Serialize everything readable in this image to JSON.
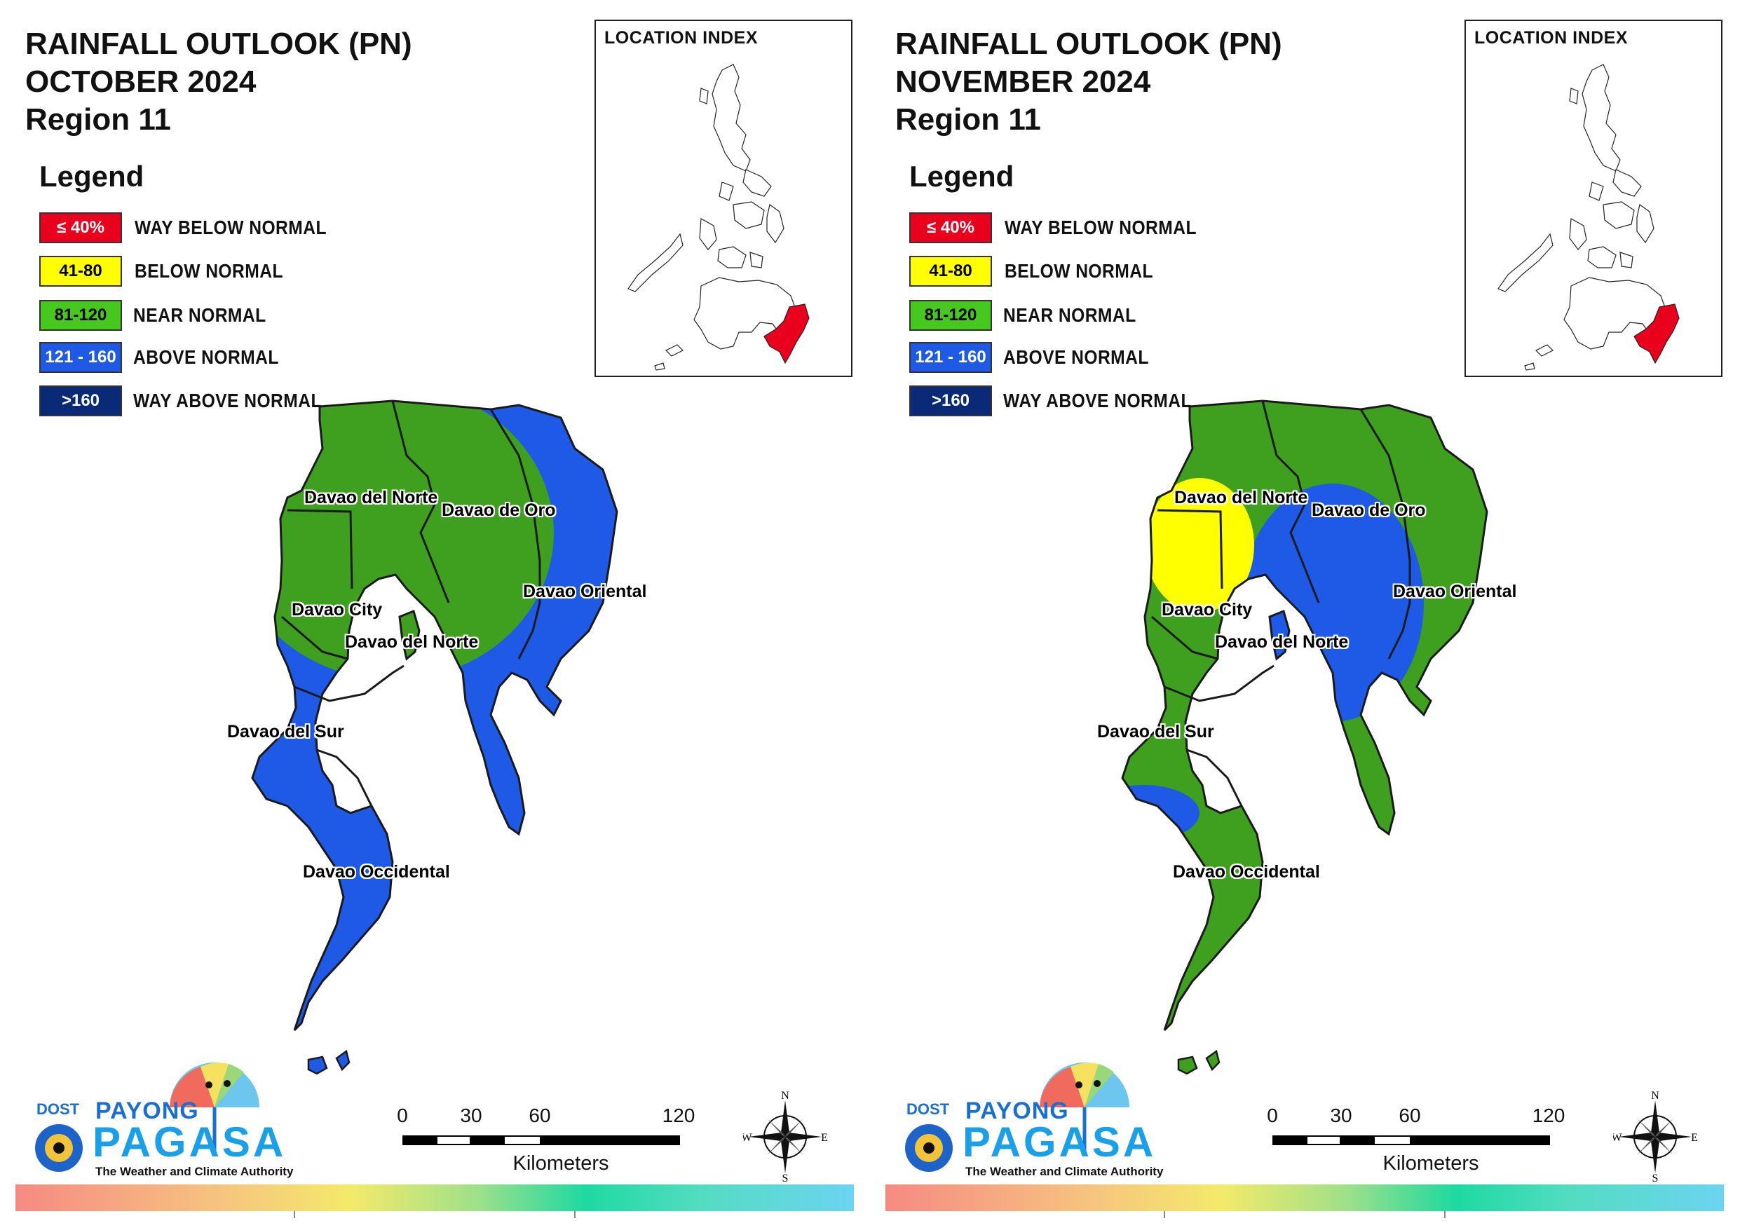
{
  "panels": [
    {
      "title": [
        "RAINFALL OUTLOOK (PN)",
        "OCTOBER 2024",
        "Region 11"
      ],
      "labels": {
        "davao_del_norte_top": "Davao del Norte",
        "davao_de_oro": "Davao de Oro",
        "davao_oriental": "Davao Oriental",
        "davao_city": "Davao City",
        "davao_del_norte_island": "Davao del Norte",
        "davao_del_sur": "Davao del Sur",
        "davao_occidental": "Davao Occidental"
      },
      "dominant_category": "ABOVE NORMAL",
      "zones": [
        "NEAR NORMAL",
        "ABOVE NORMAL"
      ]
    },
    {
      "title": [
        "RAINFALL OUTLOOK (PN)",
        "NOVEMBER 2024",
        "Region 11"
      ],
      "labels": {
        "davao_del_norte_top": "Davao del Norte",
        "davao_de_oro": "Davao de Oro",
        "davao_oriental": "Davao Oriental",
        "davao_city": "Davao City",
        "davao_del_norte_island": "Davao del Norte",
        "davao_del_sur": "Davao del Sur",
        "davao_occidental": "Davao Occidental"
      },
      "dominant_category": "NEAR NORMAL",
      "zones": [
        "BELOW NORMAL",
        "NEAR NORMAL",
        "ABOVE NORMAL"
      ]
    }
  ],
  "legend": {
    "title": "Legend",
    "items": [
      {
        "range": "≤ 40%",
        "label": "WAY BELOW NORMAL",
        "color": "#e8001c",
        "text_color": "#ffffff"
      },
      {
        "range": "41-80",
        "label": "BELOW NORMAL",
        "color": "#ffff00",
        "text_color": "#000000"
      },
      {
        "range": "81-120",
        "label": "NEAR NORMAL",
        "color": "#46c81e",
        "text_color": "#000000"
      },
      {
        "range": "121 - 160",
        "label": "ABOVE NORMAL",
        "color": "#1e5ae6",
        "text_color": "#ffffff"
      },
      {
        "range": ">160",
        "label": "WAY ABOVE NORMAL",
        "color": "#0a2a78",
        "text_color": "#ffffff"
      }
    ]
  },
  "index_map": {
    "title": "LOCATION INDEX",
    "highlight_color": "#e8001c"
  },
  "scale": {
    "ticks": [
      "0",
      "30",
      "60",
      "120"
    ],
    "unit": "Kilometers"
  },
  "compass": {
    "n": "N",
    "s": "S",
    "e": "E",
    "w": "W"
  },
  "logo": {
    "dost": "DOST",
    "payong": "PAYONG",
    "pagasa": "PAGASA",
    "tagline": "The Weather and Climate Authority"
  },
  "map_colors": {
    "near_normal": "#3ea01e",
    "above_normal": "#1e5ae6",
    "below_normal": "#ffff00",
    "border": "#1a1a1a"
  }
}
